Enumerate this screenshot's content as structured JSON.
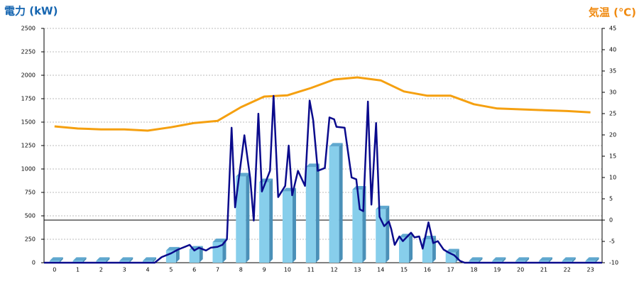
{
  "chart_data": {
    "type": "bar",
    "title_left": "電力 (kW)",
    "title_right": "気温 (℃)",
    "categories": [
      "0",
      "1",
      "2",
      "3",
      "4",
      "5",
      "6",
      "7",
      "8",
      "9",
      "10",
      "11",
      "12",
      "13",
      "14",
      "15",
      "16",
      "17",
      "18",
      "19",
      "20",
      "21",
      "22",
      "23"
    ],
    "series": [
      {
        "type": "bar",
        "color": "#87ceeb",
        "values": [
          20,
          20,
          20,
          20,
          20,
          130,
          140,
          220,
          920,
          860,
          760,
          1020,
          1240,
          780,
          570,
          270,
          250,
          110,
          20,
          20,
          20,
          20,
          20,
          20
        ]
      },
      {
        "type": "line",
        "axis": "y2",
        "color": "#f5a010",
        "values": [
          22,
          21.5,
          21.3,
          21.3,
          21,
          21.8,
          22.8,
          23.3,
          26.5,
          29,
          29.3,
          31,
          33,
          33.5,
          32.8,
          30.2,
          29.2,
          29.2,
          27.2,
          26.2,
          26,
          25.8,
          25.6,
          25.3
        ]
      }
    ],
    "detail": {
      "type": "line",
      "color": "#0a0a8c",
      "x": [
        -0.45,
        4.3,
        4.6,
        5,
        5.3,
        5.6,
        5.8,
        6,
        6.2,
        6.5,
        6.7,
        7,
        7.2,
        7.4,
        7.6,
        7.75,
        8.15,
        8.4,
        8.55,
        8.75,
        8.9,
        9.25,
        9.4,
        9.6,
        9.9,
        10.05,
        10.2,
        10.45,
        10.75,
        10.95,
        11.1,
        11.3,
        11.6,
        11.8,
        12,
        12.1,
        12.45,
        12.75,
        12.95,
        13.1,
        13.25,
        13.45,
        13.6,
        13.8,
        13.95,
        14.15,
        14.35,
        14.45,
        14.6,
        14.8,
        14.95,
        15.3,
        15.45,
        15.65,
        15.8,
        16.05,
        16.25,
        16.45,
        16.7,
        16.9,
        17.15,
        17.4,
        17.6,
        23.5
      ],
      "values": [
        0,
        0,
        60,
        100,
        140,
        170,
        190,
        130,
        160,
        130,
        160,
        170,
        190,
        250,
        1440,
        590,
        1360,
        900,
        450,
        1590,
        760,
        980,
        1780,
        700,
        820,
        1250,
        720,
        980,
        820,
        1730,
        1520,
        980,
        1010,
        1550,
        1530,
        1450,
        1440,
        910,
        890,
        570,
        550,
        1720,
        620,
        1490,
        490,
        390,
        440,
        360,
        190,
        280,
        230,
        320,
        270,
        280,
        150,
        430,
        210,
        230,
        140,
        110,
        80,
        20,
        0,
        0
      ]
    },
    "xlim": [
      -0.45,
      23.5
    ],
    "ylim": [
      0,
      2500
    ],
    "yticks": [
      0,
      250,
      500,
      750,
      1000,
      1250,
      1500,
      1750,
      2000,
      2250,
      2500
    ],
    "y2lim": [
      -10,
      45
    ],
    "y2ticks": [
      -10,
      -5,
      0,
      5,
      10,
      15,
      20,
      25,
      30,
      35,
      40,
      45
    ],
    "grid": true
  }
}
